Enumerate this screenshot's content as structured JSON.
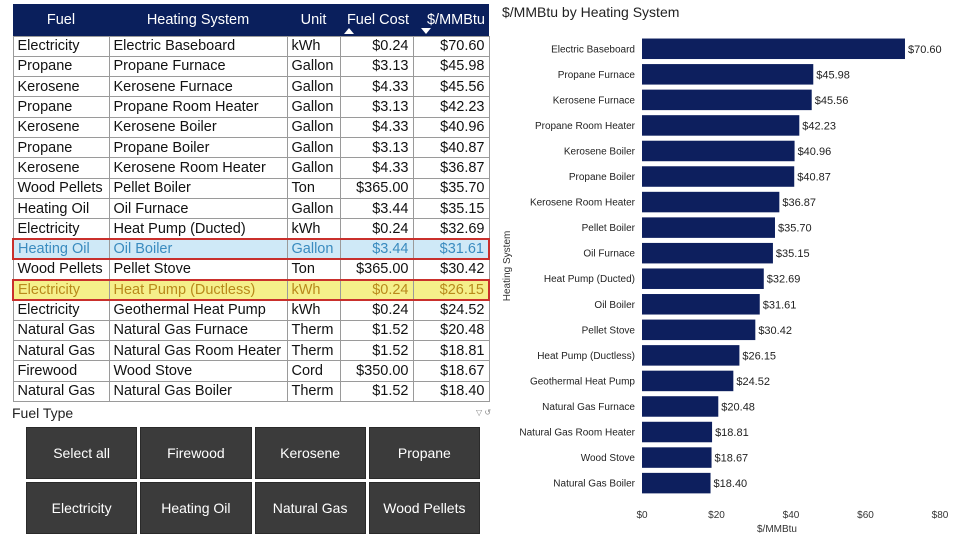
{
  "table": {
    "headers": [
      "Fuel",
      "Heating System",
      "Unit",
      "Fuel Cost",
      "$/MMBtu"
    ],
    "rows": [
      [
        "Electricity",
        "Electric Baseboard",
        "kWh",
        "$0.24",
        "$70.60"
      ],
      [
        "Propane",
        "Propane Furnace",
        "Gallon",
        "$3.13",
        "$45.98"
      ],
      [
        "Kerosene",
        "Kerosene Furnace",
        "Gallon",
        "$4.33",
        "$45.56"
      ],
      [
        "Propane",
        "Propane Room Heater",
        "Gallon",
        "$3.13",
        "$42.23"
      ],
      [
        "Kerosene",
        "Kerosene Boiler",
        "Gallon",
        "$4.33",
        "$40.96"
      ],
      [
        "Propane",
        "Propane Boiler",
        "Gallon",
        "$3.13",
        "$40.87"
      ],
      [
        "Kerosene",
        "Kerosene Room Heater",
        "Gallon",
        "$4.33",
        "$36.87"
      ],
      [
        "Wood Pellets",
        "Pellet Boiler",
        "Ton",
        "$365.00",
        "$35.70"
      ],
      [
        "Heating Oil",
        "Oil Furnace",
        "Gallon",
        "$3.44",
        "$35.15"
      ],
      [
        "Electricity",
        "Heat Pump (Ducted)",
        "kWh",
        "$0.24",
        "$32.69"
      ],
      [
        "Heating Oil",
        "Oil Boiler",
        "Gallon",
        "$3.44",
        "$31.61"
      ],
      [
        "Wood Pellets",
        "Pellet Stove",
        "Ton",
        "$365.00",
        "$30.42"
      ],
      [
        "Electricity",
        "Heat Pump (Ductless)",
        "kWh",
        "$0.24",
        "$26.15"
      ],
      [
        "Electricity",
        "Geothermal Heat Pump",
        "kWh",
        "$0.24",
        "$24.52"
      ],
      [
        "Natural Gas",
        "Natural Gas Furnace",
        "Therm",
        "$1.52",
        "$20.48"
      ],
      [
        "Natural Gas",
        "Natural Gas Room Heater",
        "Therm",
        "$1.52",
        "$18.81"
      ],
      [
        "Firewood",
        "Wood Stove",
        "Cord",
        "$350.00",
        "$18.67"
      ],
      [
        "Natural Gas",
        "Natural Gas Boiler",
        "Therm",
        "$1.52",
        "$18.40"
      ]
    ],
    "highlight_blue_row": 10,
    "highlight_yellow_row": 12
  },
  "slicer": {
    "title": "Fuel Type",
    "options": [
      "Select all",
      "Firewood",
      "Kerosene",
      "Propane",
      "Electricity",
      "Heating Oil",
      "Natural Gas",
      "Wood Pellets"
    ]
  },
  "colors": {
    "header_bg": "#0a1f5c",
    "bar": "#0d1f5e",
    "slicer_bg": "#3b3b3b"
  },
  "chart_data": {
    "type": "bar",
    "orientation": "horizontal",
    "title": "$/MMBtu by Heating System",
    "xlabel": "$/MMBtu",
    "ylabel": "Heating System",
    "xlim": [
      0,
      80
    ],
    "xticks": [
      0,
      20,
      40,
      60,
      80
    ],
    "xtick_labels": [
      "$0",
      "$20",
      "$40",
      "$60",
      "$80"
    ],
    "categories": [
      "Electric Baseboard",
      "Propane Furnace",
      "Kerosene Furnace",
      "Propane Room Heater",
      "Kerosene Boiler",
      "Propane Boiler",
      "Kerosene Room Heater",
      "Pellet Boiler",
      "Oil Furnace",
      "Heat Pump (Ducted)",
      "Oil Boiler",
      "Pellet Stove",
      "Heat Pump (Ductless)",
      "Geothermal Heat Pump",
      "Natural Gas Furnace",
      "Natural Gas Room Heater",
      "Wood Stove",
      "Natural Gas Boiler"
    ],
    "values": [
      70.6,
      45.98,
      45.56,
      42.23,
      40.96,
      40.87,
      36.87,
      35.7,
      35.15,
      32.69,
      31.61,
      30.42,
      26.15,
      24.52,
      20.48,
      18.81,
      18.67,
      18.4
    ],
    "value_labels": [
      "$70.60",
      "$45.98",
      "$45.56",
      "$42.23",
      "$40.96",
      "$40.87",
      "$36.87",
      "$35.70",
      "$35.15",
      "$32.69",
      "$31.61",
      "$30.42",
      "$26.15",
      "$24.52",
      "$20.48",
      "$18.81",
      "$18.67",
      "$18.40"
    ],
    "grid": false
  }
}
